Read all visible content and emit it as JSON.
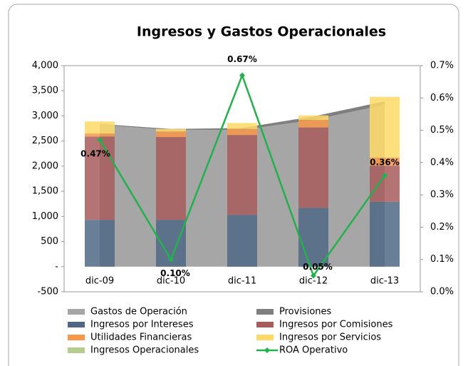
{
  "chart_data": {
    "type": "combo",
    "title": "Ingresos y Gastos Operacionales",
    "categories": [
      "dic-09",
      "dic-10",
      "dic-11",
      "dic-12",
      "dic-13"
    ],
    "stacked": true,
    "legend": "bottom",
    "ylim": [
      -500,
      4000
    ],
    "yticks": [
      -500,
      {
        "value": 0,
        "label": "-"
      },
      500,
      {
        "value": 1000,
        "label": "1,000"
      },
      {
        "value": 1500,
        "label": "1,500"
      },
      {
        "value": 2000,
        "label": "2,000"
      },
      {
        "value": 2500,
        "label": "2,500"
      },
      {
        "value": 3000,
        "label": "3,000"
      },
      {
        "value": 3500,
        "label": "3,500"
      },
      {
        "value": 4000,
        "label": "4,000"
      }
    ],
    "y2lim": [
      0,
      0.7
    ],
    "y2ticks": [
      {
        "value": 0,
        "label": "0.0%"
      },
      {
        "value": 0.1,
        "label": "0.1%"
      },
      {
        "value": 0.2,
        "label": "0.2%"
      },
      {
        "value": 0.3,
        "label": "0.3%"
      },
      {
        "value": 0.4,
        "label": "0.4%"
      },
      {
        "value": 0.5,
        "label": "0.5%"
      },
      {
        "value": 0.6,
        "label": "0.6%"
      },
      {
        "value": 0.7,
        "label": "0.7%"
      }
    ],
    "series": [
      {
        "name": "Gastos de Operación",
        "type": "area",
        "color": "#a6a6a6",
        "values": [
          2820,
          2720,
          2720,
          2920,
          3220
        ]
      },
      {
        "name": "Provisiones",
        "type": "area",
        "color": "#7f7f7f",
        "values": [
          20,
          20,
          40,
          70,
          70
        ]
      },
      {
        "name": "Ingresos por Intereses",
        "type": "bar",
        "color": "#4f6785",
        "values": [
          930,
          930,
          1030,
          1170,
          1290
        ]
      },
      {
        "name": "Ingresos por Comisiones",
        "type": "bar",
        "color": "#a85c5c",
        "values": [
          1660,
          1650,
          1590,
          1600,
          720
        ]
      },
      {
        "name": "Utilidades Financieras",
        "type": "bar",
        "color": "#f79646",
        "values": [
          60,
          110,
          120,
          150,
          160
        ]
      },
      {
        "name": "Ingresos por Servicios",
        "type": "bar",
        "color": "#fed966",
        "values": [
          240,
          50,
          120,
          90,
          1210
        ]
      },
      {
        "name": "Ingresos Operacionales",
        "type": "bar",
        "color": "#b5cc8e",
        "values": [
          0,
          0,
          0,
          0,
          0
        ]
      },
      {
        "name": "ROA Operativo",
        "type": "line",
        "axis": "y2",
        "color": "#22b14c",
        "values": [
          0.47,
          0.1,
          0.67,
          0.05,
          0.36
        ],
        "value_labels": [
          "0.47%",
          "0.10%",
          "0.67%",
          "0.05%",
          "0.36%"
        ]
      }
    ]
  }
}
